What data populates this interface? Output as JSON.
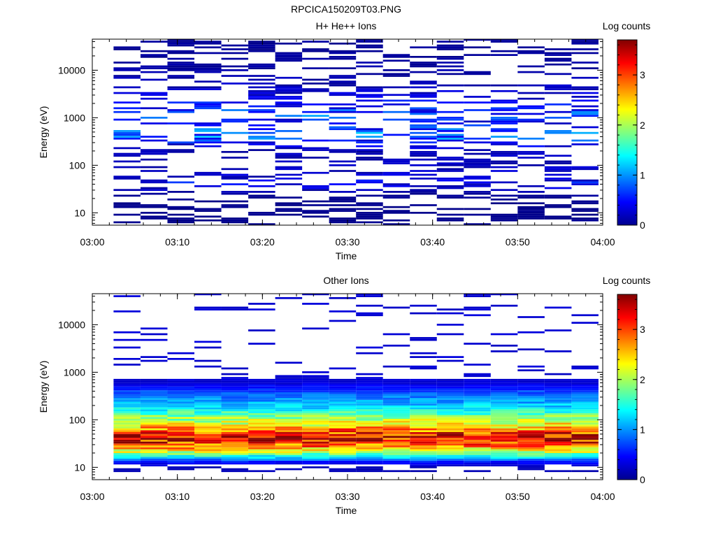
{
  "figure_title": "RPCICA150209T03.PNG",
  "chart_data": [
    {
      "type": "heatmap",
      "title": "H+ He++ Ions",
      "xlabel": "Time",
      "ylabel": "Energy (eV)",
      "x_ticks": [
        "03:00",
        "03:10",
        "03:20",
        "03:30",
        "03:40",
        "03:50",
        "04:00"
      ],
      "xlim": [
        "03:00",
        "04:00"
      ],
      "y_scale": "log",
      "ylim": [
        5.5,
        45000
      ],
      "y_ticks": [
        10,
        100,
        1000,
        10000
      ],
      "y_tick_labels": [
        "10",
        "100",
        "1000",
        "10000"
      ],
      "colorbar": {
        "label": "Log counts",
        "range": [
          0,
          3.7
        ],
        "ticks": [
          0,
          1,
          2,
          3
        ],
        "tick_labels": [
          "0",
          "1",
          "2",
          "3"
        ]
      },
      "time_bins_start": [
        "03:02:30",
        "03:05:40",
        "03:08:50",
        "03:12:00",
        "03:15:10",
        "03:18:20",
        "03:21:30",
        "03:24:40",
        "03:27:50",
        "03:31:00",
        "03:34:10",
        "03:37:20",
        "03:40:30",
        "03:43:40",
        "03:46:50",
        "03:50:00",
        "03:53:10",
        "03:56:20"
      ],
      "energy_profile_eV": [
        18,
        25,
        45,
        55,
        200,
        300,
        400,
        500,
        600,
        800,
        1100,
        3000,
        9000,
        25000
      ],
      "log_counts_profile": [
        0.05,
        0.1,
        0.5,
        0.3,
        0.2,
        0.5,
        1.0,
        0.9,
        0.7,
        0.4,
        0.8,
        0.3,
        0.15,
        0.1
      ]
    },
    {
      "type": "heatmap",
      "title": "Other Ions",
      "xlabel": "Time",
      "ylabel": "Energy (eV)",
      "x_ticks": [
        "03:00",
        "03:10",
        "03:20",
        "03:30",
        "03:40",
        "03:50",
        "04:00"
      ],
      "xlim": [
        "03:00",
        "04:00"
      ],
      "y_scale": "log",
      "ylim": [
        5.5,
        45000
      ],
      "y_ticks": [
        10,
        100,
        1000,
        10000
      ],
      "y_tick_labels": [
        "10",
        "100",
        "1000",
        "10000"
      ],
      "colorbar": {
        "label": "Log counts",
        "range": [
          0,
          3.7
        ],
        "ticks": [
          0,
          1,
          2,
          3
        ],
        "tick_labels": [
          "0",
          "1",
          "2",
          "3"
        ]
      },
      "time_bins_start": [
        "03:02:30",
        "03:05:40",
        "03:08:50",
        "03:12:00",
        "03:15:10",
        "03:18:20",
        "03:21:30",
        "03:24:40",
        "03:27:50",
        "03:31:00",
        "03:34:10",
        "03:37:20",
        "03:40:30",
        "03:43:40",
        "03:46:50",
        "03:50:00",
        "03:53:10",
        "03:56:20"
      ],
      "energy_profile_eV": [
        10,
        13,
        18,
        22,
        28,
        35,
        45,
        60,
        80,
        110,
        150,
        200,
        300,
        450,
        600
      ],
      "log_counts_profile": [
        0.2,
        0.5,
        1.6,
        2.2,
        2.8,
        3.2,
        3.4,
        2.8,
        2.3,
        1.9,
        1.5,
        1.2,
        0.9,
        0.6,
        0.3
      ]
    }
  ]
}
